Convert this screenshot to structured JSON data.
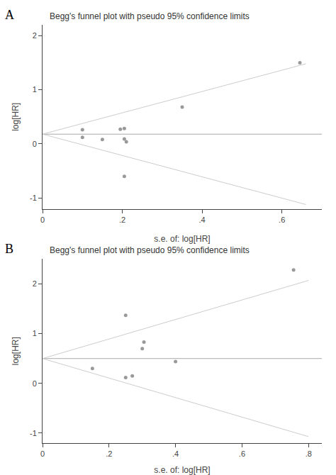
{
  "chart_data": [
    {
      "type": "scatter",
      "title": "Begg's funnel plot with pseudo 95% confidence limits",
      "xlabel": "s.e. of: log[HR]",
      "ylabel": "log[HR]",
      "annotations": [
        "A"
      ],
      "xlim": [
        0,
        0.7
      ],
      "ylim": [
        -1.2,
        2.2
      ],
      "xticks": [
        0,
        {
          "value": 0.2,
          "label": ".2"
        },
        {
          "value": 0.4,
          "label": ".4"
        },
        {
          "value": 0.6,
          "label": ".6"
        }
      ],
      "yticks": [
        -1,
        0,
        1,
        2
      ],
      "grid": false,
      "series": [
        {
          "type": "line",
          "color": "#cccccc",
          "x": [
            0.0,
            0.66
          ],
          "values": [
            0.18,
            1.48
          ]
        },
        {
          "type": "line",
          "color": "#cccccc",
          "x": [
            0.0,
            0.66
          ],
          "values": [
            0.18,
            -1.12
          ]
        },
        {
          "type": "hline",
          "color": "#aaaaaa",
          "values": [
            0.18
          ]
        },
        {
          "type": "scatter",
          "color": "#999999",
          "x": [
            0.1,
            0.1,
            0.15,
            0.195,
            0.205,
            0.205,
            0.21,
            0.205,
            0.35,
            0.645
          ],
          "values": [
            0.12,
            0.26,
            0.08,
            0.27,
            0.285,
            0.09,
            0.04,
            -0.6,
            0.68,
            1.5
          ]
        }
      ]
    },
    {
      "type": "scatter",
      "title": "Begg's funnel plot with pseudo 95% confidence limits",
      "xlabel": "s.e. of: log[HR]",
      "ylabel": "log[HR]",
      "annotations": [
        "B"
      ],
      "xlim": [
        0,
        0.84
      ],
      "ylim": [
        -1.2,
        2.5
      ],
      "xticks": [
        0,
        {
          "value": 0.2,
          "label": ".2"
        },
        {
          "value": 0.4,
          "label": ".4"
        },
        {
          "value": 0.6,
          "label": ".6"
        },
        {
          "value": 0.8,
          "label": ".8"
        }
      ],
      "yticks": [
        -1,
        0,
        1,
        2
      ],
      "grid": false,
      "series": [
        {
          "type": "line",
          "color": "#cccccc",
          "x": [
            0.0,
            0.8
          ],
          "values": [
            0.5,
            2.07
          ]
        },
        {
          "type": "line",
          "color": "#cccccc",
          "x": [
            0.0,
            0.8
          ],
          "values": [
            0.5,
            -1.07
          ]
        },
        {
          "type": "hline",
          "color": "#aaaaaa",
          "values": [
            0.5
          ]
        },
        {
          "type": "scatter",
          "color": "#999999",
          "x": [
            0.15,
            0.25,
            0.25,
            0.27,
            0.3,
            0.305,
            0.4,
            0.755
          ],
          "values": [
            0.3,
            1.37,
            0.12,
            0.15,
            0.7,
            0.83,
            0.44,
            2.28
          ]
        }
      ]
    }
  ]
}
